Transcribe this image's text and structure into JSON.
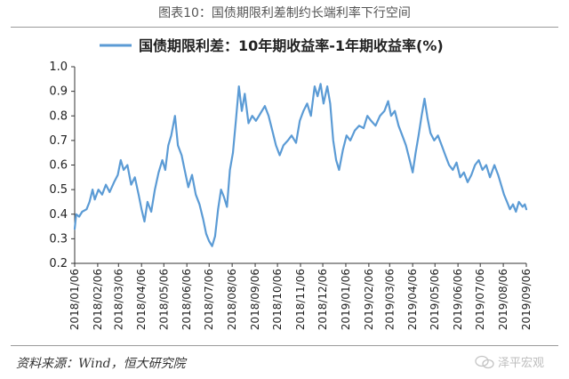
{
  "figure": {
    "title": "图表10：国债期限利差制约长端利率下行空间",
    "source": "资料来源：Wind，恒大研究院",
    "watermark": "泽平宏观"
  },
  "colors": {
    "line": "#5b9bd5",
    "axis": "#333333",
    "text": "#222222"
  },
  "chart_data": {
    "type": "line",
    "title": "",
    "xlabel": "",
    "ylabel": "",
    "ylim": [
      0.2,
      1.0
    ],
    "yticks": [
      "0.2",
      "0.3",
      "0.4",
      "0.5",
      "0.6",
      "0.7",
      "0.8",
      "0.9",
      "1.0"
    ],
    "xticks": [
      "2018/01/06",
      "2018/02/06",
      "2018/03/06",
      "2018/04/06",
      "2018/05/06",
      "2018/06/06",
      "2018/07/06",
      "2018/08/06",
      "2018/09/06",
      "2018/10/06",
      "2018/11/06",
      "2018/12/06",
      "2019/01/06",
      "2019/02/06",
      "2019/03/06",
      "2019/04/06",
      "2019/05/06",
      "2019/06/06",
      "2019/07/06",
      "2019/08/06",
      "2019/09/06"
    ],
    "grid": false,
    "legend": "top-center",
    "series": [
      {
        "name": "国债期限利差：10年期收益率-1年期收益率(%)",
        "points": [
          [
            "2018-01-06",
            0.34
          ],
          [
            "2018-01-08",
            0.4
          ],
          [
            "2018-01-12",
            0.39
          ],
          [
            "2018-01-16",
            0.41
          ],
          [
            "2018-01-22",
            0.42
          ],
          [
            "2018-01-26",
            0.45
          ],
          [
            "2018-01-30",
            0.5
          ],
          [
            "2018-02-02",
            0.46
          ],
          [
            "2018-02-07",
            0.5
          ],
          [
            "2018-02-12",
            0.48
          ],
          [
            "2018-02-17",
            0.52
          ],
          [
            "2018-02-22",
            0.49
          ],
          [
            "2018-02-28",
            0.53
          ],
          [
            "2018-03-05",
            0.56
          ],
          [
            "2018-03-09",
            0.62
          ],
          [
            "2018-03-13",
            0.58
          ],
          [
            "2018-03-18",
            0.6
          ],
          [
            "2018-03-23",
            0.52
          ],
          [
            "2018-03-28",
            0.55
          ],
          [
            "2018-04-02",
            0.48
          ],
          [
            "2018-04-06",
            0.42
          ],
          [
            "2018-04-10",
            0.37
          ],
          [
            "2018-04-14",
            0.45
          ],
          [
            "2018-04-19",
            0.41
          ],
          [
            "2018-04-24",
            0.5
          ],
          [
            "2018-04-29",
            0.57
          ],
          [
            "2018-05-04",
            0.62
          ],
          [
            "2018-05-08",
            0.58
          ],
          [
            "2018-05-12",
            0.68
          ],
          [
            "2018-05-16",
            0.72
          ],
          [
            "2018-05-21",
            0.8
          ],
          [
            "2018-05-25",
            0.68
          ],
          [
            "2018-05-30",
            0.64
          ],
          [
            "2018-06-03",
            0.58
          ],
          [
            "2018-06-08",
            0.51
          ],
          [
            "2018-06-13",
            0.56
          ],
          [
            "2018-06-18",
            0.48
          ],
          [
            "2018-06-23",
            0.44
          ],
          [
            "2018-06-28",
            0.38
          ],
          [
            "2018-07-02",
            0.32
          ],
          [
            "2018-07-06",
            0.29
          ],
          [
            "2018-07-10",
            0.27
          ],
          [
            "2018-07-14",
            0.31
          ],
          [
            "2018-07-18",
            0.42
          ],
          [
            "2018-07-22",
            0.5
          ],
          [
            "2018-07-26",
            0.47
          ],
          [
            "2018-07-30",
            0.43
          ],
          [
            "2018-08-03",
            0.58
          ],
          [
            "2018-08-07",
            0.65
          ],
          [
            "2018-08-11",
            0.78
          ],
          [
            "2018-08-15",
            0.92
          ],
          [
            "2018-08-19",
            0.82
          ],
          [
            "2018-08-23",
            0.89
          ],
          [
            "2018-08-28",
            0.77
          ],
          [
            "2018-09-02",
            0.8
          ],
          [
            "2018-09-07",
            0.78
          ],
          [
            "2018-09-13",
            0.81
          ],
          [
            "2018-09-19",
            0.84
          ],
          [
            "2018-09-24",
            0.8
          ],
          [
            "2018-09-29",
            0.74
          ],
          [
            "2018-10-04",
            0.68
          ],
          [
            "2018-10-09",
            0.64
          ],
          [
            "2018-10-14",
            0.68
          ],
          [
            "2018-10-20",
            0.7
          ],
          [
            "2018-10-25",
            0.72
          ],
          [
            "2018-10-31",
            0.69
          ],
          [
            "2018-11-05",
            0.78
          ],
          [
            "2018-11-10",
            0.82
          ],
          [
            "2018-11-15",
            0.85
          ],
          [
            "2018-11-20",
            0.8
          ],
          [
            "2018-11-25",
            0.92
          ],
          [
            "2018-11-29",
            0.88
          ],
          [
            "2018-12-03",
            0.93
          ],
          [
            "2018-12-07",
            0.85
          ],
          [
            "2018-12-12",
            0.92
          ],
          [
            "2018-12-16",
            0.85
          ],
          [
            "2018-12-20",
            0.7
          ],
          [
            "2018-12-24",
            0.62
          ],
          [
            "2018-12-28",
            0.58
          ],
          [
            "2019-01-02",
            0.66
          ],
          [
            "2019-01-07",
            0.72
          ],
          [
            "2019-01-12",
            0.7
          ],
          [
            "2019-01-18",
            0.74
          ],
          [
            "2019-01-24",
            0.76
          ],
          [
            "2019-01-30",
            0.75
          ],
          [
            "2019-02-04",
            0.8
          ],
          [
            "2019-02-09",
            0.78
          ],
          [
            "2019-02-15",
            0.76
          ],
          [
            "2019-02-21",
            0.8
          ],
          [
            "2019-02-27",
            0.82
          ],
          [
            "2019-03-04",
            0.86
          ],
          [
            "2019-03-08",
            0.8
          ],
          [
            "2019-03-13",
            0.82
          ],
          [
            "2019-03-18",
            0.76
          ],
          [
            "2019-03-23",
            0.72
          ],
          [
            "2019-03-28",
            0.68
          ],
          [
            "2019-04-02",
            0.62
          ],
          [
            "2019-04-06",
            0.57
          ],
          [
            "2019-04-10",
            0.65
          ],
          [
            "2019-04-14",
            0.72
          ],
          [
            "2019-04-18",
            0.8
          ],
          [
            "2019-04-22",
            0.87
          ],
          [
            "2019-04-26",
            0.79
          ],
          [
            "2019-04-30",
            0.73
          ],
          [
            "2019-05-05",
            0.7
          ],
          [
            "2019-05-10",
            0.72
          ],
          [
            "2019-05-15",
            0.68
          ],
          [
            "2019-05-20",
            0.64
          ],
          [
            "2019-05-25",
            0.6
          ],
          [
            "2019-05-30",
            0.58
          ],
          [
            "2019-06-04",
            0.61
          ],
          [
            "2019-06-09",
            0.55
          ],
          [
            "2019-06-14",
            0.57
          ],
          [
            "2019-06-19",
            0.53
          ],
          [
            "2019-06-24",
            0.56
          ],
          [
            "2019-06-29",
            0.6
          ],
          [
            "2019-07-04",
            0.62
          ],
          [
            "2019-07-09",
            0.58
          ],
          [
            "2019-07-14",
            0.6
          ],
          [
            "2019-07-19",
            0.55
          ],
          [
            "2019-07-25",
            0.6
          ],
          [
            "2019-07-30",
            0.56
          ],
          [
            "2019-08-03",
            0.52
          ],
          [
            "2019-08-07",
            0.48
          ],
          [
            "2019-08-11",
            0.45
          ],
          [
            "2019-08-15",
            0.42
          ],
          [
            "2019-08-19",
            0.44
          ],
          [
            "2019-08-23",
            0.41
          ],
          [
            "2019-08-27",
            0.45
          ],
          [
            "2019-09-01",
            0.43
          ],
          [
            "2019-09-04",
            0.44
          ],
          [
            "2019-09-06",
            0.42
          ]
        ]
      }
    ]
  }
}
